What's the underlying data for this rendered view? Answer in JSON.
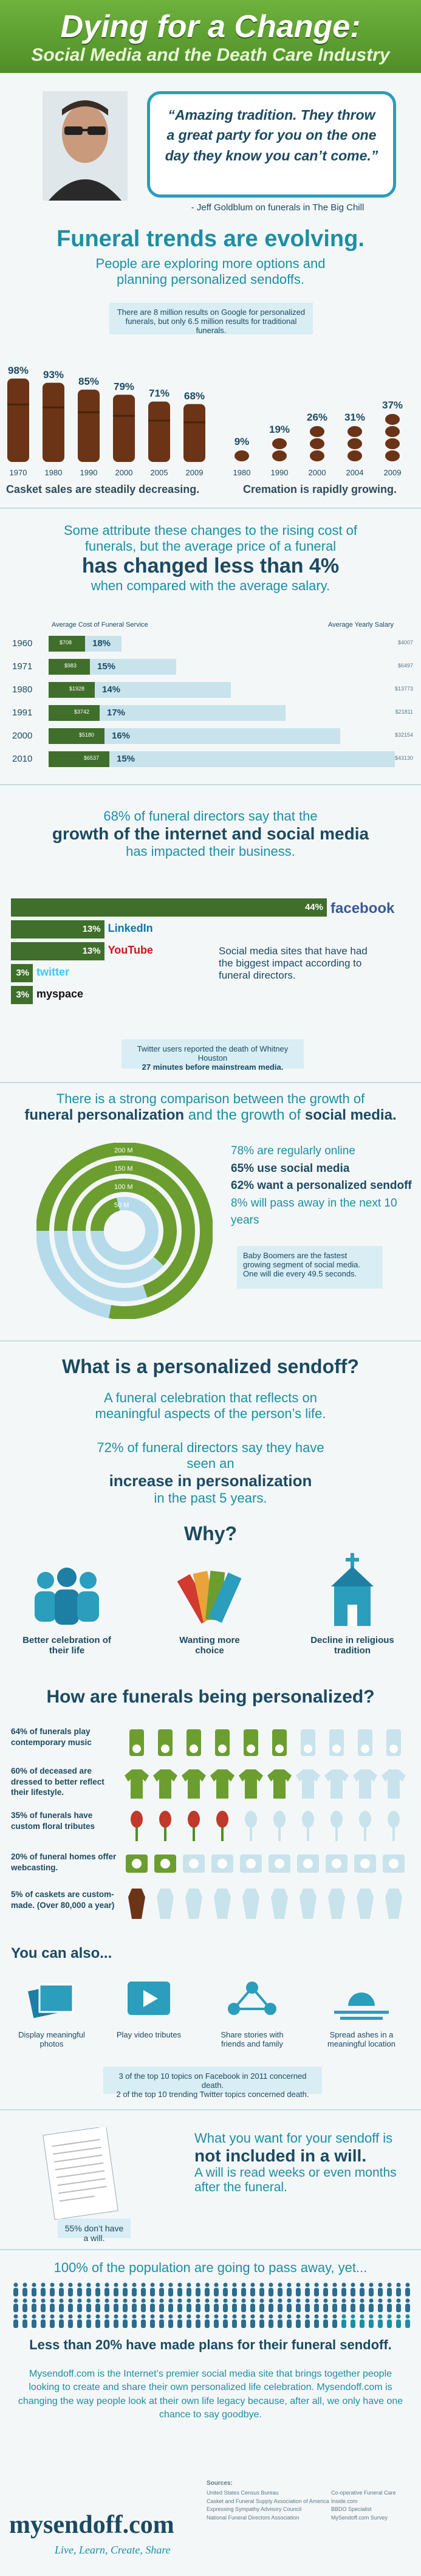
{
  "header": {
    "title": "Dying for a Change:",
    "subtitle": "Social Media and the Death Care Industry"
  },
  "quote": {
    "text": "“Amazing tradition. They throw a great party for you on the one day they know you can’t come.”",
    "attribution": "- Jeff Goldblum on funerals in The Big Chill"
  },
  "trends": {
    "title": "Funeral trends are evolving.",
    "subtitle": "People are exploring more options and planning personalized sendoffs.",
    "note": "There are 8 million results on Google for personalized funerals, but only 6.5 million results for traditional funerals."
  },
  "casket_data": {
    "years": [
      "1970",
      "1980",
      "1990",
      "2000",
      "2005",
      "2009"
    ],
    "pct": [
      "98%",
      "93%",
      "85%",
      "79%",
      "71%",
      "68%"
    ],
    "values": [
      98,
      93,
      85,
      79,
      71,
      68
    ],
    "caption": "Casket sales are steadily decreasing."
  },
  "cremation_data": {
    "years": [
      "1980",
      "1990",
      "2000",
      "2004",
      "2009"
    ],
    "pct": [
      "9%",
      "19%",
      "26%",
      "31%",
      "37%"
    ],
    "values": [
      9,
      19,
      26,
      31,
      37
    ],
    "caption": "Cremation is rapidly growing."
  },
  "cost": {
    "line1": "Some attribute these changes to the rising cost of funerals, but the average price of a funeral",
    "line2": "has changed less than 4%",
    "line3": "when compared with the average salary.",
    "left_header": "Average Cost of Funeral Service",
    "right_header": "Average Yearly Salary",
    "rows": [
      {
        "year": "1960",
        "cost": "$708",
        "pct": "18%",
        "salary": "$4007"
      },
      {
        "year": "1971",
        "cost": "$983",
        "pct": "15%",
        "salary": "$6497"
      },
      {
        "year": "1980",
        "cost": "$1928",
        "pct": "14%",
        "salary": "$13773"
      },
      {
        "year": "1991",
        "cost": "$3742",
        "pct": "17%",
        "salary": "$21811"
      },
      {
        "year": "2000",
        "cost": "$5180",
        "pct": "16%",
        "salary": "$32154"
      },
      {
        "year": "2010",
        "cost": "$6537",
        "pct": "15%",
        "salary": "$43130"
      }
    ]
  },
  "social": {
    "line1": "68% of funeral directors say that the",
    "line2": "growth of the internet and social media",
    "line3": "has impacted their business.",
    "bars": [
      {
        "pct": "44%",
        "name": "facebook",
        "value": 44
      },
      {
        "pct": "13%",
        "name": "LinkedIn",
        "value": 13
      },
      {
        "pct": "13%",
        "name": "YouTube",
        "value": 13
      },
      {
        "pct": "3%",
        "name": "twitter",
        "value": 3
      },
      {
        "pct": "3%",
        "name": "myspace",
        "value": 3
      }
    ],
    "side_text": "Social media sites that have had the biggest impact according to funeral directors.",
    "twitter_note_1": "Twitter users reported the death of Whitney Houston",
    "twitter_note_2": "27 minutes before mainstream media."
  },
  "growth": {
    "line1": "There is a strong comparison between the growth of",
    "line2a": "funeral personalization",
    "line2b": " and the growth of ",
    "line2c": "social media.",
    "ring_labels": [
      "200 M",
      "150 M",
      "100 M",
      "50 M"
    ],
    "facts": [
      "78% are regularly online",
      "65% use social media",
      "62% want a personalized sendoff",
      "8% will pass away in the next 10 years"
    ],
    "boomer_note": "Baby Boomers are the fastest growing segment of social media. One will die every 49.5 seconds."
  },
  "sendoff": {
    "title": "What is a personalized sendoff?",
    "def": "A funeral celebration that reflects on meaningful aspects of the person’s life.",
    "stat1": "72% of funeral directors say they have seen an",
    "stat2": "increase in personalization",
    "stat3": "in the past 5 years."
  },
  "why": {
    "title": "Why?",
    "items": [
      "Better celebration of their life",
      "Wanting more choice",
      "Decline in religious tradition"
    ]
  },
  "how": {
    "title": "How are funerals being personalized?",
    "rows": [
      {
        "label": "64% of funerals play contemporary music",
        "value": 64
      },
      {
        "label": "60% of deceased are dressed to better reflect their lifestyle.",
        "value": 60
      },
      {
        "label": "35% of funerals have custom floral tributes",
        "value": 35
      },
      {
        "label": "20% of funeral homes offer webcasting.",
        "value": 20
      },
      {
        "label": "5% of caskets are custom-made. (Over 80,000 a year)",
        "value": 5
      }
    ]
  },
  "also": {
    "title": "You can also...",
    "items": [
      "Display meaningful photos",
      "Play video tributes",
      "Share stories with friends and family",
      "Spread ashes in a meaningful location"
    ],
    "fb_note1": "3 of the top 10 topics on Facebook in 2011 concerned death.",
    "fb_note2": "2 of the top 10 trending Twitter topics concerned death."
  },
  "will": {
    "line1": "What you want for your sendoff is",
    "line2": "not included in a will.",
    "line3": "A will is read weeks or even months after the funeral.",
    "badge": "55% don’t have a will."
  },
  "population": {
    "line1": "100% of the population are going to pass away, yet...",
    "line2": "Less than 20% have made plans for their funeral sendoff."
  },
  "footer": {
    "text": "Mysendoff.com is the Internet’s premier social media site that brings together people looking to create and share their own personalized life celebration. Mysendoff.com is changing the way people look at their own life legacy because, after all, we only have one chance to say goodbye.",
    "brand": "mysendoff.com",
    "tagline": "Live, Learn, Create, Share",
    "sources_title": "Sources:",
    "sources_col1": [
      "United States Census Bureau",
      "Casket and Funeral Supply Association of America",
      "Expressing Sympathy Advisory Council",
      "National Funeral Directors Association"
    ],
    "sources_col2": [
      "Co-operative Funeral Care",
      "Inside.com",
      "BBDO Specialist",
      "MySendoff.com Survey"
    ]
  },
  "colors": {
    "teal": "#1c8fa3",
    "navy": "#1b4a61",
    "green": "#6b9e2f",
    "brown": "#6b3416",
    "light_blue": "#c8e3ec"
  }
}
